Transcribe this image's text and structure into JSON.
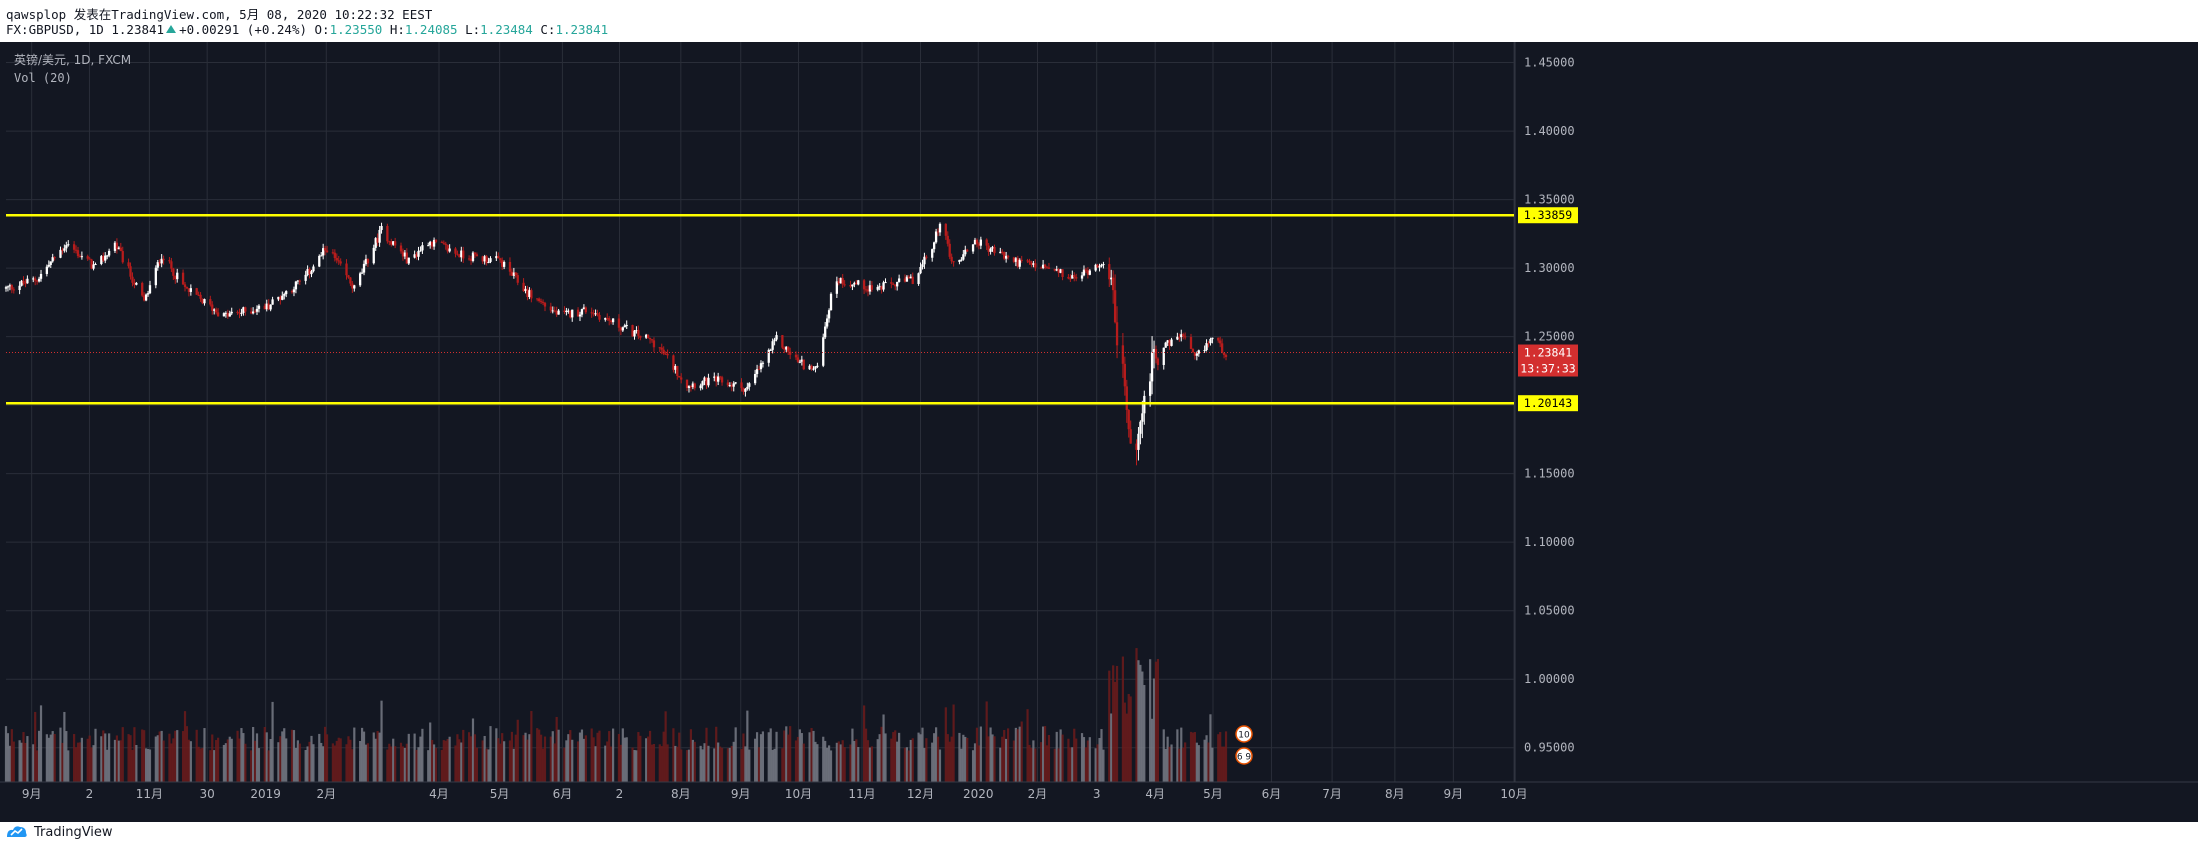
{
  "header": {
    "line1": "qawsplop 发表在TradingView.com, 5月 08, 2020 10:22:32 EEST",
    "symbol": "FX:GBPUSD, 1D",
    "last": "1.23841",
    "change": "+0.00291 (+0.24%)",
    "o_label": "O:",
    "o_value": "1.23550",
    "h_label": "H:",
    "h_value": "1.24085",
    "l_label": "L:",
    "l_value": "1.23484",
    "c_label": "C:",
    "c_value": "1.23841"
  },
  "pane": {
    "title": "英镑/美元, 1D, FXCM",
    "vol_label": "Vol (20)"
  },
  "footer": {
    "brand": "TradingView"
  },
  "colors": {
    "background": "#131722",
    "grid": "#2a2e39",
    "up_candle": "#ffffff",
    "down_candle": "#b71c1c",
    "level_line": "#ffff00",
    "last_price": "#d32f2f",
    "header_green": "#26a69a"
  },
  "chart_data": {
    "type": "candlestick",
    "symbol": "英镑/美元",
    "interval": "1D",
    "source": "FXCM",
    "ylim": [
      0.925,
      1.465
    ],
    "y_ticks": [
      1.45,
      1.4,
      1.35,
      1.3,
      1.25,
      1.2,
      1.15,
      1.1,
      1.05,
      1.0,
      0.95
    ],
    "y_tick_labels": [
      "1.45000",
      "1.40000",
      "1.35000",
      "1.30000",
      "1.25000",
      "1.20000",
      "1.15000",
      "1.10000",
      "1.05000",
      "1.00000",
      "0.95000"
    ],
    "x_ticks": [
      "9月",
      "2",
      "11月",
      "30",
      "2019",
      "2月",
      "4月",
      "5月",
      "6月",
      "2",
      "8月",
      "9月",
      "10月",
      "11月",
      "12月",
      "2020",
      "2月",
      "3",
      "4月",
      "5月",
      "6月",
      "7月",
      "8月",
      "9月",
      "10月"
    ],
    "price_path": [
      [
        "2018-08-20",
        1.285
      ],
      [
        "2018-09-05",
        1.292
      ],
      [
        "2018-09-20",
        1.318
      ],
      [
        "2018-10-05",
        1.3
      ],
      [
        "2018-10-15",
        1.318
      ],
      [
        "2018-10-30",
        1.275
      ],
      [
        "2018-11-08",
        1.31
      ],
      [
        "2018-11-20",
        1.285
      ],
      [
        "2018-12-10",
        1.265
      ],
      [
        "2019-01-01",
        1.272
      ],
      [
        "2019-01-20",
        1.292
      ],
      [
        "2019-02-01",
        1.315
      ],
      [
        "2019-02-15",
        1.285
      ],
      [
        "2019-03-01",
        1.328
      ],
      [
        "2019-03-15",
        1.305
      ],
      [
        "2019-03-25",
        1.32
      ],
      [
        "2019-04-10",
        1.31
      ],
      [
        "2019-05-01",
        1.305
      ],
      [
        "2019-05-15",
        1.282
      ],
      [
        "2019-06-01",
        1.265
      ],
      [
        "2019-06-15",
        1.27
      ],
      [
        "2019-07-01",
        1.258
      ],
      [
        "2019-07-20",
        1.245
      ],
      [
        "2019-08-05",
        1.215
      ],
      [
        "2019-08-20",
        1.218
      ],
      [
        "2019-09-05",
        1.212
      ],
      [
        "2019-09-20",
        1.248
      ],
      [
        "2019-10-01",
        1.232
      ],
      [
        "2019-10-10",
        1.225
      ],
      [
        "2019-10-20",
        1.292
      ],
      [
        "2019-11-10",
        1.285
      ],
      [
        "2019-11-30",
        1.292
      ],
      [
        "2019-12-10",
        1.318
      ],
      [
        "2019-12-13",
        1.335
      ],
      [
        "2019-12-20",
        1.302
      ],
      [
        "2019-12-31",
        1.32
      ],
      [
        "2020-01-20",
        1.305
      ],
      [
        "2020-02-05",
        1.3
      ],
      [
        "2020-02-20",
        1.292
      ],
      [
        "2020-03-05",
        1.305
      ],
      [
        "2020-03-10",
        1.285
      ],
      [
        "2020-03-16",
        1.225
      ],
      [
        "2020-03-20",
        1.16
      ],
      [
        "2020-03-25",
        1.185
      ],
      [
        "2020-04-01",
        1.24
      ],
      [
        "2020-04-10",
        1.245
      ],
      [
        "2020-04-15",
        1.252
      ],
      [
        "2020-04-22",
        1.233
      ],
      [
        "2020-05-01",
        1.25
      ],
      [
        "2020-05-08",
        1.238
      ]
    ],
    "level_lines": [
      {
        "value": 1.33859,
        "label": "1.33859"
      },
      {
        "value": 1.20143,
        "label": "1.20143"
      }
    ],
    "last_price": {
      "value": 1.23841,
      "label": "1.23841",
      "countdown": "13:37:33"
    },
    "volume_badges": [
      "10",
      "6 9"
    ],
    "grid": true
  }
}
